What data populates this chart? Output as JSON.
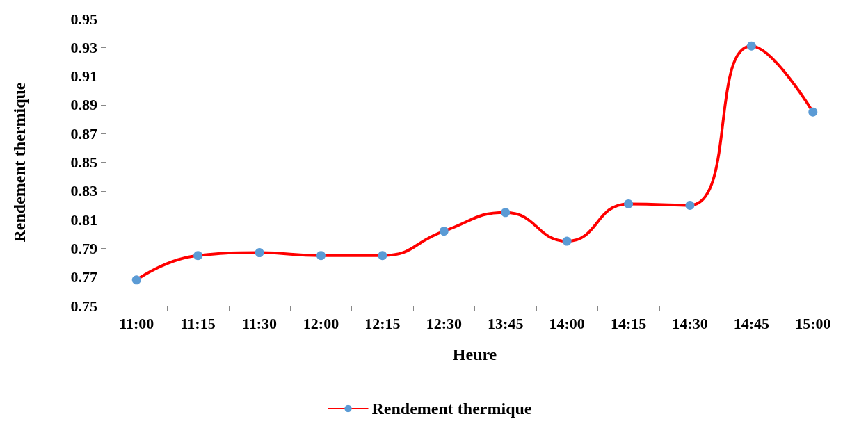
{
  "chart_data": {
    "type": "line",
    "xlabel": "Heure",
    "ylabel": "Rendement thermique",
    "categories": [
      "11:00",
      "11:15",
      "11:30",
      "12:00",
      "12:15",
      "12:30",
      "13:45",
      "14:00",
      "14:15",
      "14:30",
      "14:45",
      "15:00"
    ],
    "series": [
      {
        "name": "Rendement thermique",
        "color": "#ff0000",
        "values": [
          0.768,
          0.785,
          0.787,
          0.785,
          0.785,
          0.802,
          0.815,
          0.795,
          0.821,
          0.82,
          0.931,
          0.885
        ]
      }
    ],
    "ylim": [
      0.75,
      0.95
    ],
    "yticks": [
      0.75,
      0.77,
      0.79,
      0.81,
      0.83,
      0.85,
      0.87,
      0.89,
      0.91,
      0.93,
      0.95
    ],
    "grid": false,
    "legend": "bottom",
    "marker": "circle",
    "line_style": "solid"
  }
}
